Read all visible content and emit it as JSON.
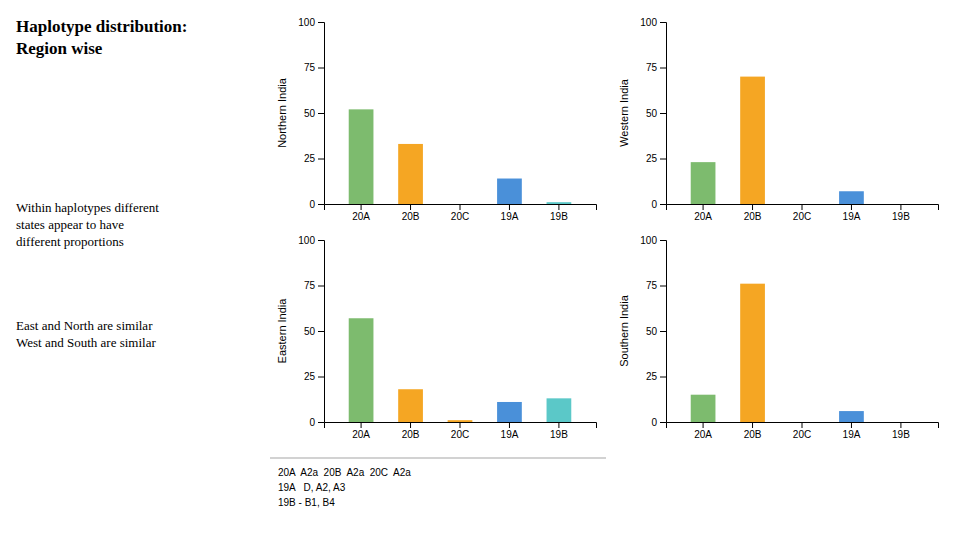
{
  "title": "Haplotype distribution:\nRegion wise",
  "subtitle": [
    "Within haplotypes different\nstates appear to have\ndifferent proportions",
    "East and North are similar\nWest and South are similar"
  ],
  "annotations": [
    "20A  A2a  20B  A2a  20C  A2a",
    "19A   D, A2, A3",
    "19B - B1, B4"
  ],
  "chart_data": [
    {
      "type": "bar",
      "y_label": "Northern India",
      "categories": [
        "20A",
        "20B",
        "20C",
        "19A",
        "19B"
      ],
      "values": [
        52,
        33,
        0,
        14,
        1
      ],
      "colors": [
        "#7dbb6e",
        "#f5a623",
        "#f5a623",
        "#4a90d9",
        "#5bc8c8"
      ],
      "ylim": [
        0,
        100
      ],
      "yticks": [
        0,
        25,
        50,
        75,
        100
      ],
      "grid": false
    },
    {
      "type": "bar",
      "y_label": "Western India",
      "categories": [
        "20A",
        "20B",
        "20C",
        "19A",
        "19B"
      ],
      "values": [
        23,
        70,
        0,
        7,
        0
      ],
      "colors": [
        "#7dbb6e",
        "#f5a623",
        "#f5a623",
        "#4a90d9",
        "#5bc8c8"
      ],
      "ylim": [
        0,
        100
      ],
      "yticks": [
        0,
        25,
        50,
        75,
        100
      ],
      "grid": false
    },
    {
      "type": "bar",
      "y_label": "Eastern India",
      "categories": [
        "20A",
        "20B",
        "20C",
        "19A",
        "19B"
      ],
      "values": [
        57,
        18,
        1,
        11,
        13
      ],
      "colors": [
        "#7dbb6e",
        "#f5a623",
        "#f5a623",
        "#4a90d9",
        "#5bc8c8"
      ],
      "ylim": [
        0,
        100
      ],
      "yticks": [
        0,
        25,
        50,
        75,
        100
      ],
      "grid": false
    },
    {
      "type": "bar",
      "y_label": "Southern India",
      "categories": [
        "20A",
        "20B",
        "20C",
        "19A",
        "19B"
      ],
      "values": [
        15,
        76,
        0,
        6,
        0
      ],
      "colors": [
        "#7dbb6e",
        "#f5a623",
        "#f5a623",
        "#4a90d9",
        "#5bc8c8"
      ],
      "ylim": [
        0,
        100
      ],
      "yticks": [
        0,
        25,
        50,
        75,
        100
      ],
      "grid": false
    }
  ]
}
